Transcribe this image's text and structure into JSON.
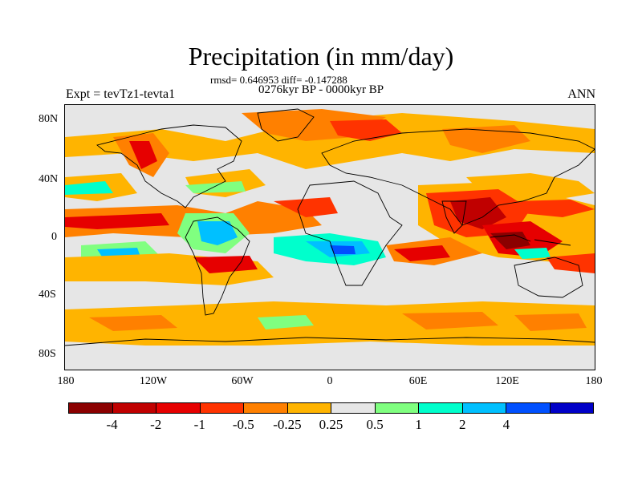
{
  "title": "Precipitation (in mm/day)",
  "stats": "rmsd= 0.646953 diff= -0.147288",
  "period": "0276kyr BP - 0000kyr BP",
  "experiment": "Expt = tevTz1-tevta1",
  "season": "ANN",
  "lat_labels": [
    "80N",
    "40N",
    "0",
    "40S",
    "80S"
  ],
  "lon_labels": [
    "180",
    "120W",
    "60W",
    "0",
    "60E",
    "120E",
    "180"
  ],
  "colorbar": {
    "colors": [
      "#8b0000",
      "#c00000",
      "#e60000",
      "#ff3300",
      "#ff8000",
      "#ffb400",
      "#e6e6e6",
      "#80ff80",
      "#00ffcc",
      "#00c0ff",
      "#0050ff",
      "#0000c8"
    ],
    "labels": [
      "-4",
      "-2",
      "-1",
      "-0.5",
      "-0.25",
      "0.25",
      "0.5",
      "1",
      "2",
      "4"
    ]
  }
}
